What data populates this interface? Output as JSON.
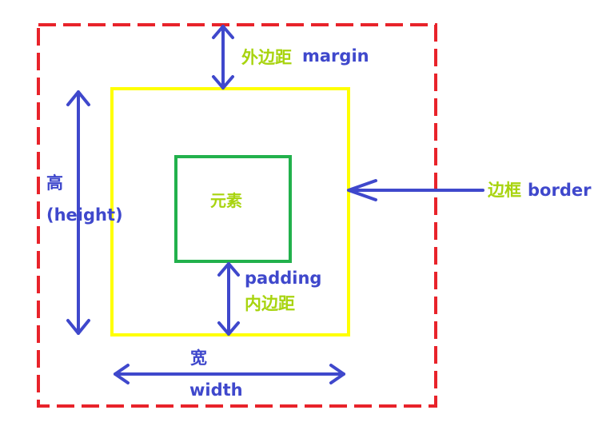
{
  "diagram": {
    "margin_label_cn": "外边距",
    "margin_label_en": "margin",
    "border_label_cn": "边框",
    "border_label_en": "border",
    "element_label": "元素",
    "padding_label_en": "padding",
    "padding_label_cn": "内边距",
    "height_label_cn": "高",
    "height_label_en": "(height)",
    "width_label_cn": "宽",
    "width_label_en": "width"
  },
  "colors": {
    "margin_box": "#e8232a",
    "border_box": "#ffff00",
    "element_box": "#22b14c",
    "arrow": "#3f48cc",
    "blue_text": "#3f48cc",
    "green_text": "#a8d40f"
  }
}
